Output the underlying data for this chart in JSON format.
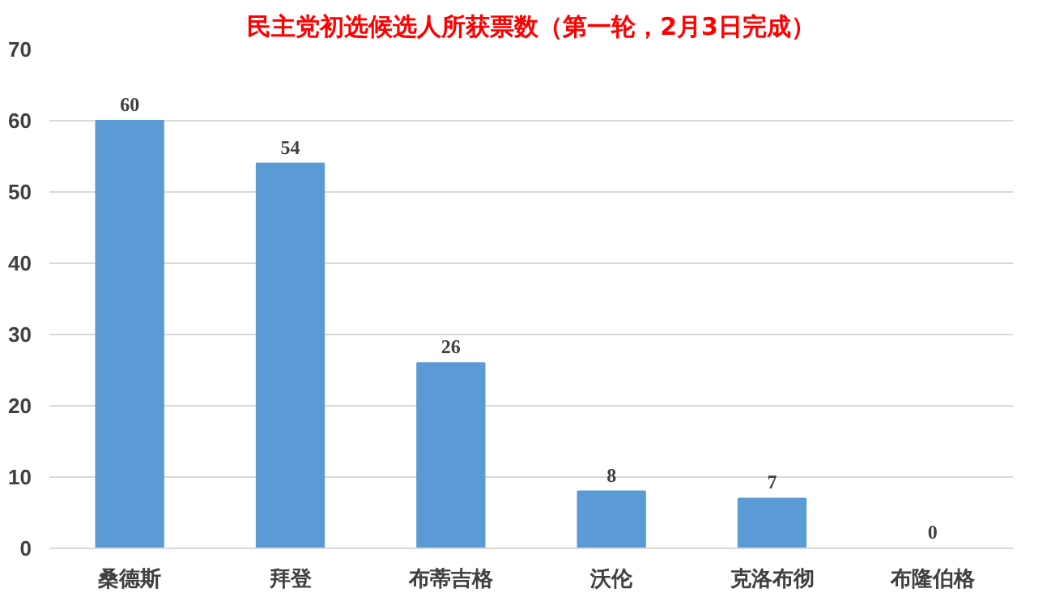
{
  "chart_data": {
    "type": "bar",
    "title": "民主党初选候选人所获票数（第一轮，2月3日完成）",
    "categories": [
      "桑德斯",
      "拜登",
      "布蒂吉格",
      "沃伦",
      "克洛布彻",
      "布隆伯格"
    ],
    "values": [
      60,
      54,
      26,
      8,
      7,
      0
    ],
    "color": "#5b9bd5",
    "data_labels": true,
    "grid": "y",
    "ylim": [
      0,
      70
    ],
    "yticks": [
      0,
      10,
      20,
      30,
      40,
      50,
      60,
      70
    ]
  }
}
